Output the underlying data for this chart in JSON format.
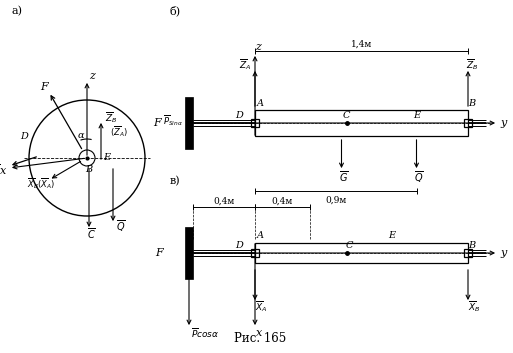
{
  "title": "Рис. 165",
  "bg": "#ffffff",
  "panel_a": "а)",
  "panel_b": "б)",
  "panel_v": "в)",
  "dim_14": "1,4м",
  "dim_09": "0,9м",
  "dim_04a": "0,4м",
  "dim_04b": "0,4м"
}
